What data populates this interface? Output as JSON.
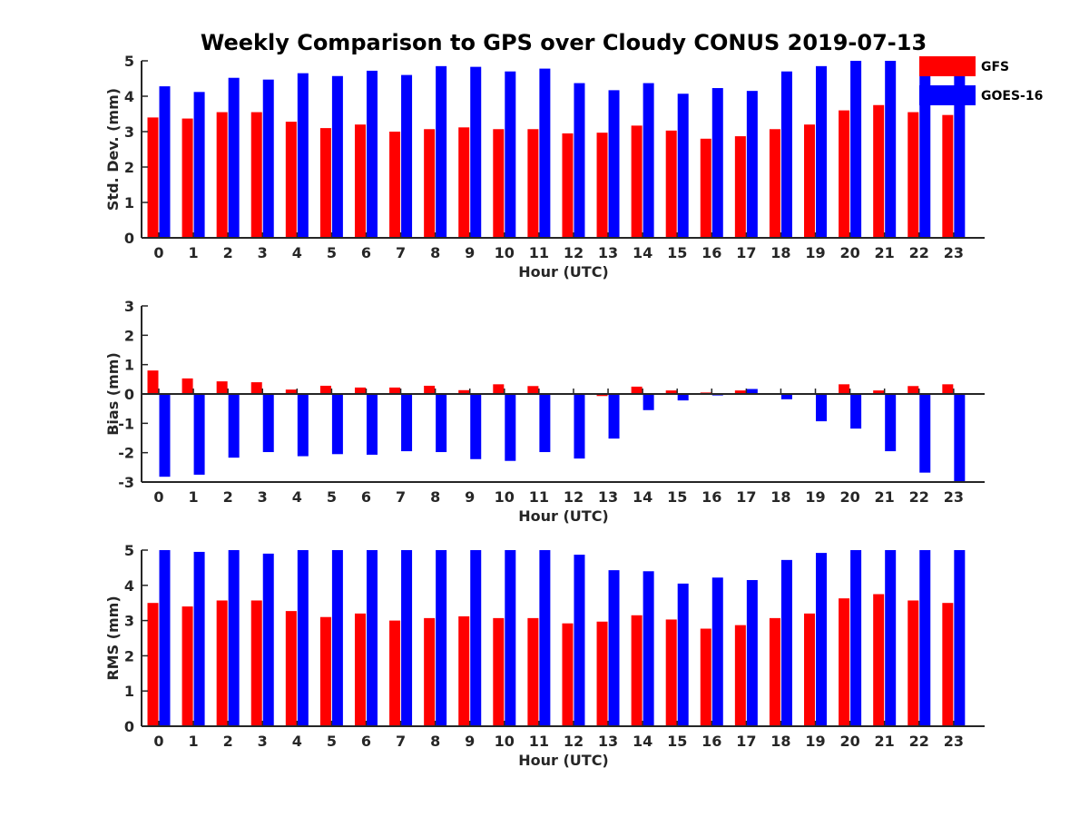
{
  "figure": {
    "title": "Weekly Comparison to GPS over Cloudy CONUS 2019-07-13"
  },
  "legend": {
    "placement": "top-right",
    "entries": [
      {
        "name": "GFS",
        "color": "#ff0000"
      },
      {
        "name": "GOES-16",
        "color": "#0000ff"
      }
    ]
  },
  "chart_data": [
    {
      "type": "bar",
      "title": "Weekly Comparison to GPS over Cloudy CONUS 2019-07-13",
      "xlabel": "Hour (UTC)",
      "ylabel": "Std. Dev. (mm)",
      "ylim": [
        0,
        5
      ],
      "yticks": [
        0,
        1,
        2,
        3,
        4,
        5
      ],
      "grid": false,
      "categories": [
        "0",
        "1",
        "2",
        "3",
        "4",
        "5",
        "6",
        "7",
        "8",
        "9",
        "10",
        "11",
        "12",
        "13",
        "14",
        "15",
        "16",
        "17",
        "18",
        "19",
        "20",
        "21",
        "22",
        "23"
      ],
      "series": [
        {
          "name": "GFS",
          "color": "#ff0000",
          "values": [
            3.4,
            3.37,
            3.55,
            3.55,
            3.28,
            3.1,
            3.2,
            3.0,
            3.07,
            3.12,
            3.07,
            3.07,
            2.95,
            2.97,
            3.17,
            3.03,
            2.8,
            2.87,
            3.07,
            3.2,
            3.6,
            3.75,
            3.55,
            3.47
          ]
        },
        {
          "name": "GOES-16",
          "color": "#0000ff",
          "values": [
            4.28,
            4.12,
            4.52,
            4.47,
            4.65,
            4.57,
            4.72,
            4.6,
            4.85,
            4.83,
            4.7,
            4.78,
            4.37,
            4.17,
            4.37,
            4.07,
            4.23,
            4.15,
            4.7,
            4.85,
            5.0,
            5.0,
            4.88,
            4.7
          ]
        }
      ]
    },
    {
      "type": "bar",
      "xlabel": "Hour (UTC)",
      "ylabel": "Bias (mm)",
      "ylim": [
        -3,
        3
      ],
      "yticks": [
        -3,
        -2,
        -1,
        0,
        1,
        2,
        3
      ],
      "grid": false,
      "categories": [
        "0",
        "1",
        "2",
        "3",
        "4",
        "5",
        "6",
        "7",
        "8",
        "9",
        "10",
        "11",
        "12",
        "13",
        "14",
        "15",
        "16",
        "17",
        "18",
        "19",
        "20",
        "21",
        "22",
        "23"
      ],
      "series": [
        {
          "name": "GFS",
          "color": "#ff0000",
          "values": [
            0.8,
            0.53,
            0.43,
            0.4,
            0.15,
            0.28,
            0.22,
            0.22,
            0.28,
            0.13,
            0.33,
            0.27,
            -0.02,
            -0.07,
            0.25,
            0.12,
            0.05,
            0.12,
            0.03,
            -0.02,
            0.33,
            0.12,
            0.27,
            0.33
          ]
        },
        {
          "name": "GOES-16",
          "color": "#0000ff",
          "values": [
            -2.82,
            -2.75,
            -2.17,
            -1.98,
            -2.12,
            -2.05,
            -2.07,
            -1.95,
            -1.98,
            -2.22,
            -2.28,
            -1.98,
            -2.2,
            -1.52,
            -0.55,
            -0.22,
            -0.05,
            0.17,
            -0.18,
            -0.93,
            -1.18,
            -1.95,
            -2.68,
            -3.0
          ]
        }
      ]
    },
    {
      "type": "bar",
      "xlabel": "Hour (UTC)",
      "ylabel": "RMS (mm)",
      "ylim": [
        0,
        5
      ],
      "yticks": [
        0,
        1,
        2,
        3,
        4,
        5
      ],
      "grid": false,
      "categories": [
        "0",
        "1",
        "2",
        "3",
        "4",
        "5",
        "6",
        "7",
        "8",
        "9",
        "10",
        "11",
        "12",
        "13",
        "14",
        "15",
        "16",
        "17",
        "18",
        "19",
        "20",
        "21",
        "22",
        "23"
      ],
      "series": [
        {
          "name": "GFS",
          "color": "#ff0000",
          "values": [
            3.5,
            3.4,
            3.57,
            3.57,
            3.27,
            3.1,
            3.2,
            3.0,
            3.07,
            3.12,
            3.07,
            3.07,
            2.92,
            2.97,
            3.15,
            3.03,
            2.77,
            2.87,
            3.07,
            3.2,
            3.63,
            3.75,
            3.57,
            3.5
          ]
        },
        {
          "name": "GOES-16",
          "color": "#0000ff",
          "values": [
            5.0,
            4.95,
            5.0,
            4.9,
            5.0,
            5.0,
            5.0,
            5.0,
            5.0,
            5.0,
            5.0,
            5.0,
            4.87,
            4.43,
            4.4,
            4.05,
            4.22,
            4.15,
            4.72,
            4.92,
            5.0,
            5.0,
            5.0,
            5.0
          ]
        }
      ]
    }
  ]
}
